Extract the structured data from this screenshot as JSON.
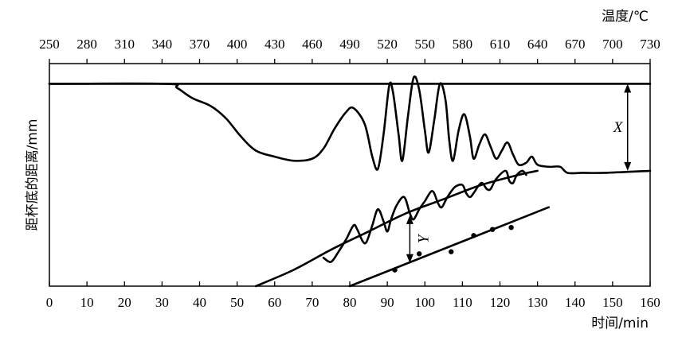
{
  "chart_data": {
    "type": "line",
    "x_bottom": {
      "label": "时间/min",
      "range": [
        0,
        160
      ],
      "ticks": [
        0,
        10,
        20,
        30,
        40,
        50,
        60,
        70,
        80,
        90,
        100,
        110,
        120,
        130,
        140,
        150,
        160
      ]
    },
    "x_top": {
      "label": "温度/℃",
      "range": [
        250,
        730
      ],
      "ticks": [
        250,
        280,
        310,
        340,
        370,
        400,
        430,
        460,
        490,
        520,
        550,
        580,
        610,
        640,
        670,
        700,
        730
      ]
    },
    "ylabel": "距杯底的距离/mm",
    "annotations": [
      {
        "text": "X",
        "x": 154
      },
      {
        "text": "Y",
        "x": 96
      }
    ],
    "reference_line": {
      "y": 100
    },
    "series": [
      {
        "role": "dilatometer_trace",
        "points": [
          [
            0,
            100
          ],
          [
            31,
            100
          ],
          [
            34,
            98
          ],
          [
            38,
            93
          ],
          [
            43,
            89
          ],
          [
            47,
            83
          ],
          [
            51,
            74
          ],
          [
            55,
            67
          ],
          [
            60,
            64
          ],
          [
            65,
            62
          ],
          [
            70,
            63
          ],
          [
            73,
            68
          ],
          [
            76,
            78
          ],
          [
            79,
            86
          ],
          [
            81,
            88
          ],
          [
            84,
            80
          ],
          [
            86,
            64
          ],
          [
            87.5,
            58
          ],
          [
            89,
            75
          ],
          [
            90.5,
            99
          ],
          [
            91.5,
            96
          ],
          [
            93,
            75
          ],
          [
            94,
            62
          ],
          [
            95.5,
            84
          ],
          [
            97,
            103
          ],
          [
            98.5,
            97
          ],
          [
            100,
            77
          ],
          [
            101,
            66
          ],
          [
            102.5,
            82
          ],
          [
            104,
            100
          ],
          [
            105.5,
            92
          ],
          [
            106.5,
            72
          ],
          [
            107.5,
            62
          ],
          [
            109,
            77
          ],
          [
            110.5,
            85
          ],
          [
            112,
            74
          ],
          [
            113,
            63
          ],
          [
            114.5,
            70
          ],
          [
            116,
            75
          ],
          [
            117.5,
            69
          ],
          [
            119,
            63
          ],
          [
            120.5,
            67
          ],
          [
            122,
            71
          ],
          [
            123.5,
            65
          ],
          [
            125,
            60
          ],
          [
            127,
            61
          ],
          [
            128.5,
            64
          ],
          [
            130,
            60
          ],
          [
            133,
            59
          ],
          [
            136,
            59
          ],
          [
            138,
            56
          ],
          [
            142,
            56
          ],
          [
            148,
            56
          ],
          [
            160,
            57
          ]
        ]
      },
      {
        "role": "upper_envelope",
        "points": [
          [
            55,
            0
          ],
          [
            65,
            8
          ],
          [
            75,
            18
          ],
          [
            85,
            27
          ],
          [
            95,
            36
          ],
          [
            105,
            43
          ],
          [
            115,
            50
          ],
          [
            125,
            55
          ],
          [
            130,
            57
          ]
        ]
      },
      {
        "role": "oscillating_trace",
        "points": [
          [
            73,
            14
          ],
          [
            75,
            12
          ],
          [
            77,
            17
          ],
          [
            79,
            23
          ],
          [
            81,
            30
          ],
          [
            82,
            28
          ],
          [
            83.5,
            22
          ],
          [
            84.5,
            22
          ],
          [
            86,
            30
          ],
          [
            87.5,
            38
          ],
          [
            89,
            32
          ],
          [
            90,
            27
          ],
          [
            91,
            33
          ],
          [
            92.5,
            40
          ],
          [
            94.5,
            44
          ],
          [
            96,
            36
          ],
          [
            97,
            33
          ],
          [
            98.5,
            38
          ],
          [
            100,
            42
          ],
          [
            102,
            47
          ],
          [
            103.5,
            41
          ],
          [
            104.5,
            39
          ],
          [
            106,
            44
          ],
          [
            108,
            49
          ],
          [
            110,
            50
          ],
          [
            111,
            46
          ],
          [
            112,
            44
          ],
          [
            113,
            46
          ],
          [
            115,
            51
          ],
          [
            116.5,
            48
          ],
          [
            117.5,
            48
          ],
          [
            119,
            53
          ],
          [
            121.5,
            57
          ],
          [
            122.5,
            52
          ],
          [
            123.5,
            51
          ],
          [
            124.5,
            55
          ],
          [
            126,
            57
          ],
          [
            127,
            55
          ]
        ]
      },
      {
        "role": "lower_fit_line",
        "points": [
          [
            80,
            0
          ],
          [
            133,
            39
          ]
        ]
      },
      {
        "role": "measured_points",
        "type": "scatter",
        "points": [
          [
            92,
            8
          ],
          [
            98.5,
            16
          ],
          [
            107,
            17
          ],
          [
            113,
            25
          ],
          [
            118,
            28
          ],
          [
            123,
            29
          ]
        ]
      }
    ]
  }
}
